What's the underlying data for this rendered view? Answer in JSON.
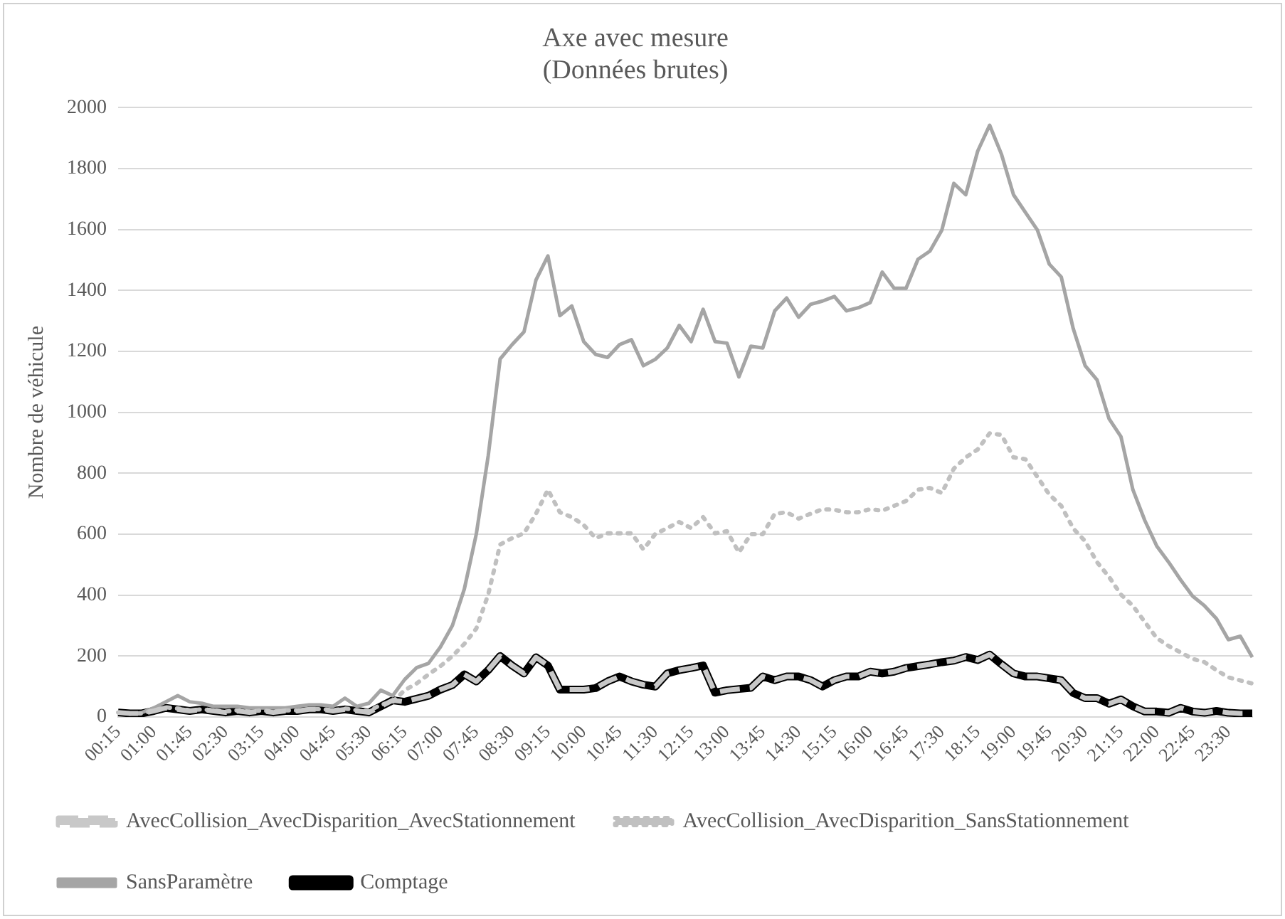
{
  "chart_data": {
    "type": "line",
    "title": "Axe avec mesure",
    "subtitle": "(Données brutes)",
    "ylabel": "Nombre de véhicule",
    "categories": [
      "00:15",
      null,
      null,
      "01:00",
      null,
      null,
      "01:45",
      null,
      null,
      "02:30",
      null,
      null,
      "03:15",
      null,
      null,
      "04:00",
      null,
      null,
      "04:45",
      null,
      null,
      "05:30",
      null,
      null,
      "06:15",
      null,
      null,
      "07:00",
      null,
      null,
      "07:45",
      null,
      null,
      "08:30",
      null,
      null,
      "09:15",
      null,
      null,
      "10:00",
      null,
      null,
      "10:45",
      null,
      null,
      "11:30",
      null,
      null,
      "12:15",
      null,
      null,
      "13:00",
      null,
      null,
      "13:45",
      null,
      null,
      "14:30",
      null,
      null,
      "15:15",
      null,
      null,
      "16:00",
      null,
      null,
      "16:45",
      null,
      null,
      "17:30",
      null,
      null,
      "18:15",
      null,
      null,
      "19:00",
      null,
      null,
      "19:45",
      null,
      null,
      "20:30",
      null,
      null,
      "21:15",
      null,
      null,
      "22:00",
      null,
      null,
      "22:45",
      null,
      null,
      "23:30",
      null,
      null
    ],
    "ylim": [
      0,
      2000
    ],
    "yticks": [
      0,
      200,
      400,
      600,
      800,
      1000,
      1200,
      1400,
      1600,
      1800,
      2000
    ],
    "grid": "y",
    "legend": "bottom",
    "marker": "none",
    "series": [
      {
        "name": "Comptage",
        "color": "#000000",
        "line_style": "solid",
        "values": [
          15,
          12,
          12,
          20,
          30,
          25,
          20,
          25,
          20,
          15,
          20,
          15,
          20,
          15,
          20,
          20,
          25,
          25,
          20,
          25,
          20,
          15,
          35,
          55,
          50,
          60,
          70,
          90,
          105,
          140,
          117,
          154,
          200,
          169,
          143,
          196,
          169,
          90,
          90,
          90,
          95,
          117,
          133,
          117,
          106,
          100,
          143,
          154,
          161,
          169,
          80,
          88,
          92,
          96,
          133,
          121,
          133,
          133,
          121,
          100,
          121,
          133,
          133,
          149,
          143,
          149,
          161,
          167,
          173,
          180,
          185,
          197,
          187,
          205,
          173,
          143,
          133,
          133,
          127,
          121,
          79,
          62,
          62,
          44,
          58,
          35,
          18,
          18,
          14,
          30,
          18,
          14,
          20,
          14,
          12,
          12
        ]
      },
      {
        "name": "SansParamètre",
        "color": "#a5a5a5",
        "line_style": "solid",
        "values": [
          15,
          10,
          15,
          30,
          50,
          70,
          50,
          45,
          35,
          35,
          35,
          30,
          30,
          30,
          30,
          35,
          40,
          40,
          35,
          62,
          35,
          45,
          88,
          70,
          123,
          162,
          176,
          230,
          300,
          420,
          600,
          857,
          1175,
          1222,
          1264,
          1434,
          1513,
          1317,
          1349,
          1232,
          1190,
          1180,
          1222,
          1238,
          1153,
          1174,
          1211,
          1285,
          1232,
          1338,
          1232,
          1227,
          1116,
          1217,
          1211,
          1333,
          1375,
          1312,
          1354,
          1365,
          1380,
          1333,
          1343,
          1360,
          1460,
          1407,
          1407,
          1502,
          1529,
          1598,
          1751,
          1714,
          1857,
          1942,
          1846,
          1714,
          1656,
          1598,
          1486,
          1444,
          1275,
          1153,
          1106,
          979,
          920,
          746,
          645,
          561,
          508,
          450,
          397,
          365,
          323,
          254,
          265,
          196
        ]
      },
      {
        "name": "AvecCollision_AvecDisparition_SansStationnement",
        "color": "#c0c0c0",
        "line_style": "dotted",
        "values": [
          15,
          12,
          12,
          22,
          32,
          28,
          22,
          25,
          22,
          18,
          22,
          18,
          22,
          18,
          22,
          22,
          26,
          26,
          22,
          28,
          22,
          20,
          40,
          50,
          88,
          110,
          140,
          167,
          200,
          240,
          290,
          402,
          566,
          587,
          603,
          667,
          746,
          672,
          656,
          630,
          587,
          603,
          603,
          603,
          550,
          601,
          620,
          640,
          620,
          656,
          603,
          610,
          540,
          600,
          600,
          667,
          672,
          651,
          667,
          682,
          680,
          672,
          672,
          682,
          677,
          693,
          709,
          746,
          752,
          735,
          815,
          852,
          878,
          931,
          926,
          852,
          846,
          788,
          730,
          693,
          619,
          577,
          508,
          460,
          402,
          365,
          312,
          259,
          233,
          212,
          191,
          180,
          154,
          130,
          120,
          110
        ]
      },
      {
        "name": "AvecCollision_AvecDisparition_AvecStationnement",
        "color": "#c8c8c8",
        "line_style": "dashed",
        "values": [
          15,
          12,
          12,
          20,
          30,
          25,
          20,
          25,
          20,
          15,
          20,
          15,
          20,
          15,
          20,
          20,
          25,
          25,
          20,
          25,
          20,
          15,
          35,
          55,
          50,
          60,
          70,
          90,
          105,
          140,
          117,
          154,
          200,
          169,
          143,
          196,
          169,
          90,
          90,
          90,
          95,
          117,
          133,
          117,
          106,
          100,
          143,
          154,
          161,
          169,
          80,
          88,
          92,
          96,
          133,
          121,
          133,
          133,
          121,
          100,
          121,
          133,
          133,
          149,
          143,
          149,
          161,
          167,
          173,
          180,
          185,
          197,
          187,
          205,
          173,
          143,
          133,
          133,
          127,
          121,
          79,
          62,
          62,
          44,
          58,
          35,
          18,
          18,
          14,
          30,
          18,
          14,
          20,
          14,
          12,
          12
        ]
      }
    ]
  }
}
